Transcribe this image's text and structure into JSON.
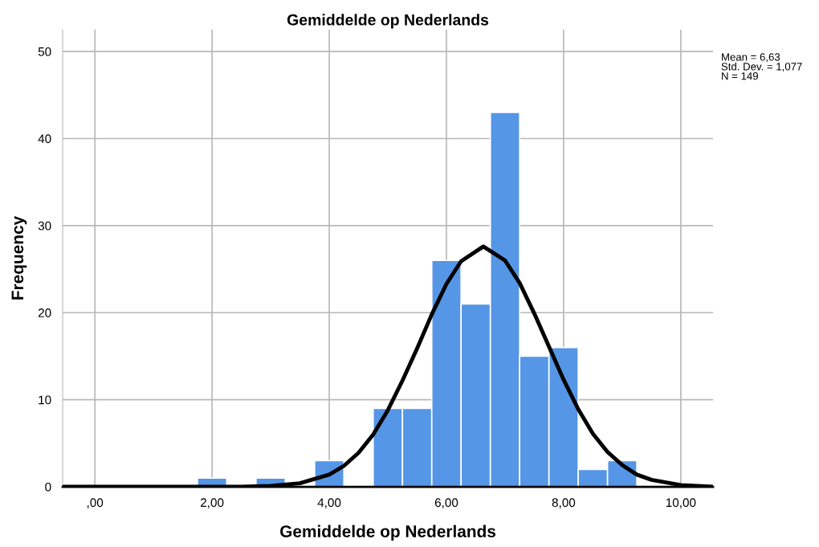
{
  "chart_data": {
    "type": "histogram",
    "title": "Gemiddelde op Nederlands",
    "xlabel": "Gemiddelde op Nederlands",
    "ylabel": "Frequency",
    "bins": [
      1.75,
      2.25,
      2.75,
      3.25,
      3.75,
      4.25,
      4.75,
      5.25,
      5.75,
      6.25,
      6.75,
      7.25,
      7.75,
      8.25,
      8.75,
      9.25
    ],
    "values": [
      1,
      0,
      1,
      0,
      3,
      0,
      9,
      9,
      26,
      21,
      43,
      15,
      16,
      2,
      3
    ],
    "color": "#5596e6",
    "series": [
      {
        "type": "line",
        "color": "#000000",
        "x": [
          -0.55,
          1,
          2,
          2.5,
          3,
          3.5,
          4,
          4.25,
          4.5,
          4.75,
          5,
          5.25,
          5.5,
          5.75,
          6,
          6.25,
          6.63,
          7,
          7.25,
          7.5,
          7.75,
          8,
          8.25,
          8.5,
          8.75,
          9,
          9.25,
          9.5,
          10,
          10.55
        ],
        "values": [
          0,
          0,
          0,
          0,
          0.1,
          0.4,
          1.4,
          2.4,
          3.9,
          6.0,
          8.8,
          12.2,
          15.9,
          19.8,
          23.3,
          25.9,
          27.6,
          26.0,
          23.4,
          19.9,
          16.1,
          12.3,
          8.9,
          6.1,
          4.0,
          2.5,
          1.4,
          0.8,
          0.2,
          0
        ]
      }
    ],
    "xlim": [
      -0.55,
      10.55
    ],
    "ylim": [
      0,
      52.5
    ],
    "xticks": [
      {
        "value": 0,
        "label": ",00"
      },
      {
        "value": 2,
        "label": "2,00"
      },
      {
        "value": 4,
        "label": "4,00"
      },
      {
        "value": 6,
        "label": "6,00"
      },
      {
        "value": 8,
        "label": "8,00"
      },
      {
        "value": 10,
        "label": "10,00"
      }
    ],
    "yticks": [
      0,
      10,
      20,
      30,
      40,
      50
    ],
    "grid": true,
    "annotations": [
      "Mean = 6,63\nStd. Dev. = 1,077\nN = 149"
    ]
  }
}
